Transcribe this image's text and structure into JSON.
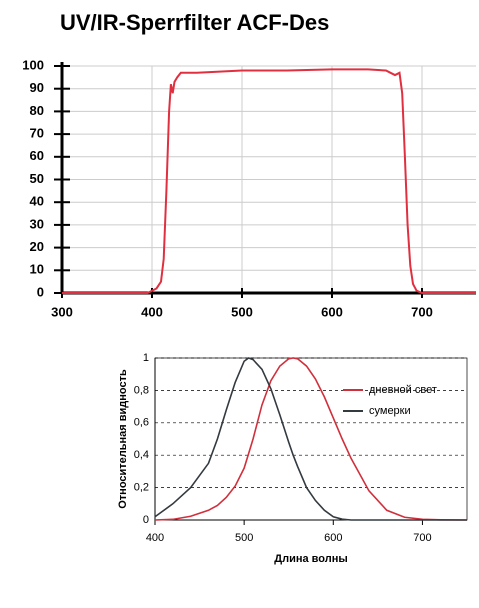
{
  "chart_data": [
    {
      "type": "line",
      "title": "UV/IR-Sperrfilter ACF-Des",
      "x": [
        300,
        350,
        395,
        400,
        405,
        410,
        413,
        416,
        419,
        421,
        423,
        425,
        428,
        432,
        450,
        500,
        550,
        600,
        640,
        660,
        665,
        670,
        675,
        678,
        681,
        684,
        687,
        690,
        694,
        700,
        720,
        760
      ],
      "series": [
        {
          "color": "#e03040",
          "values": [
            0,
            0,
            0,
            1,
            2,
            5,
            15,
            45,
            80,
            92,
            88,
            93,
            95,
            97,
            97,
            98,
            98,
            98.5,
            98.5,
            98,
            97,
            96,
            97,
            88,
            60,
            30,
            12,
            4,
            1,
            0,
            0,
            0
          ]
        }
      ],
      "xlim": [
        300,
        760
      ],
      "ylim": [
        0,
        100
      ],
      "xticks": [
        300,
        400,
        500,
        600,
        700
      ],
      "yticks": [
        0,
        10,
        20,
        30,
        40,
        50,
        60,
        70,
        80,
        90,
        100
      ],
      "grid": true
    },
    {
      "type": "line",
      "xlabel": "Длина волны",
      "ylabel": "Относительная видность",
      "x": [
        400,
        420,
        440,
        460,
        470,
        480,
        490,
        500,
        505,
        510,
        520,
        530,
        540,
        550,
        555,
        560,
        570,
        580,
        590,
        600,
        610,
        620,
        640,
        660,
        680,
        700,
        720,
        750
      ],
      "series": [
        {
          "name": "дневной свет",
          "color": "#d0303c",
          "values": [
            0,
            0.004,
            0.023,
            0.06,
            0.09,
            0.14,
            0.21,
            0.32,
            0.41,
            0.5,
            0.71,
            0.86,
            0.95,
            0.995,
            1,
            0.995,
            0.95,
            0.87,
            0.76,
            0.63,
            0.5,
            0.38,
            0.18,
            0.06,
            0.017,
            0.004,
            0.001,
            0
          ]
        },
        {
          "name": "сумерки",
          "color": "#333a40",
          "values": [
            0.02,
            0.1,
            0.2,
            0.35,
            0.5,
            0.68,
            0.85,
            0.98,
            1,
            0.99,
            0.93,
            0.81,
            0.65,
            0.48,
            0.4,
            0.33,
            0.2,
            0.12,
            0.06,
            0.02,
            0.005,
            0,
            0,
            0,
            0,
            0,
            0,
            0
          ]
        }
      ],
      "xlim": [
        400,
        750
      ],
      "ylim": [
        0,
        1
      ],
      "xticks": [
        400,
        500,
        600,
        700
      ],
      "yticks": [
        0,
        {
          "value": 0.2,
          "label": "0,2"
        },
        {
          "value": 0.4,
          "label": "0,4"
        },
        {
          "value": 0.6,
          "label": "0,6"
        },
        {
          "value": 0.8,
          "label": "0,8"
        },
        1
      ],
      "grid": true,
      "legend": "right"
    }
  ]
}
